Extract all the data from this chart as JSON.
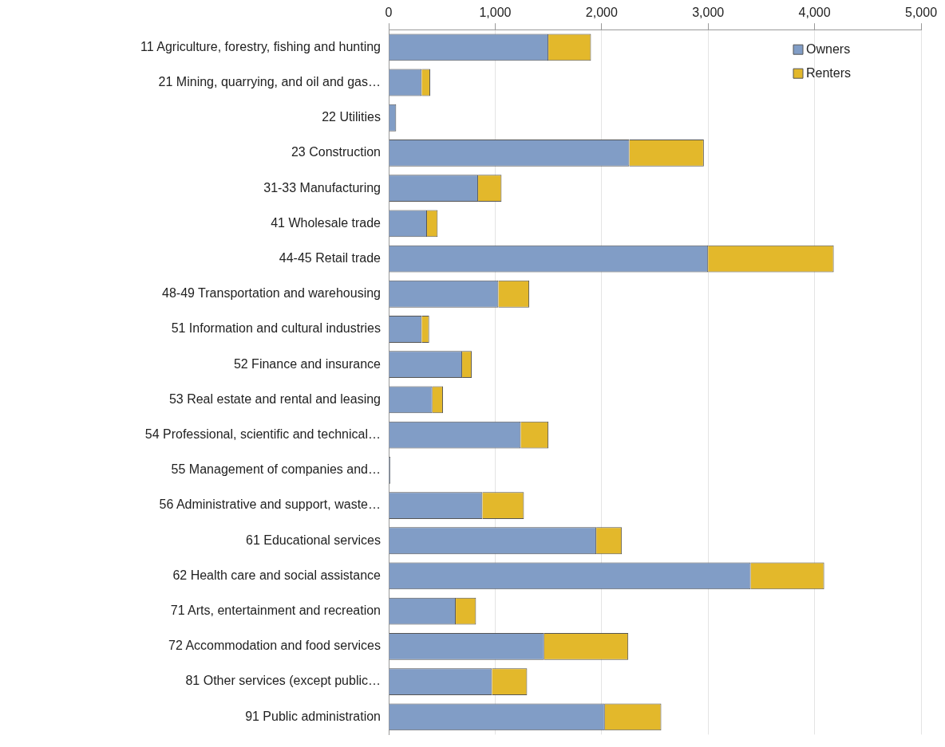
{
  "chart_data": {
    "type": "bar",
    "orientation": "horizontal",
    "stacked": true,
    "categories": [
      "11 Agriculture, forestry, fishing and hunting",
      "21 Mining, quarrying, and oil and gas…",
      "22 Utilities",
      "23 Construction",
      "31-33 Manufacturing",
      "41 Wholesale trade",
      "44-45 Retail trade",
      "48-49 Transportation and warehousing",
      "51 Information and cultural industries",
      "52 Finance and insurance",
      "53 Real estate and rental and leasing",
      "54 Professional, scientific and technical…",
      "55 Management of companies and…",
      "56 Administrative and support, waste…",
      "61 Educational services",
      "62 Health care and social assistance",
      "71 Arts, entertainment and recreation",
      "72 Accommodation and food services",
      "81 Other services (except public…",
      "91 Public administration"
    ],
    "series": [
      {
        "name": "Owners",
        "color": "#819dc6",
        "values": [
          1500,
          310,
          70,
          2260,
          840,
          360,
          3000,
          1030,
          310,
          690,
          410,
          1240,
          15,
          880,
          1950,
          3400,
          630,
          1460,
          970,
          2030
        ]
      },
      {
        "name": "Renters",
        "color": "#e3b82b",
        "values": [
          400,
          80,
          0,
          700,
          220,
          100,
          1180,
          290,
          70,
          90,
          100,
          260,
          0,
          390,
          240,
          690,
          190,
          790,
          330,
          530
        ]
      }
    ],
    "xlim": [
      0,
      5000
    ],
    "xticks": [
      {
        "value": 0,
        "label": "0"
      },
      {
        "value": 1000,
        "label": "1,000"
      },
      {
        "value": 2000,
        "label": "2,000"
      },
      {
        "value": 3000,
        "label": "3,000"
      },
      {
        "value": 4000,
        "label": "4,000"
      },
      {
        "value": 5000,
        "label": "5,000"
      }
    ],
    "grid": "x",
    "legend": "top right"
  }
}
